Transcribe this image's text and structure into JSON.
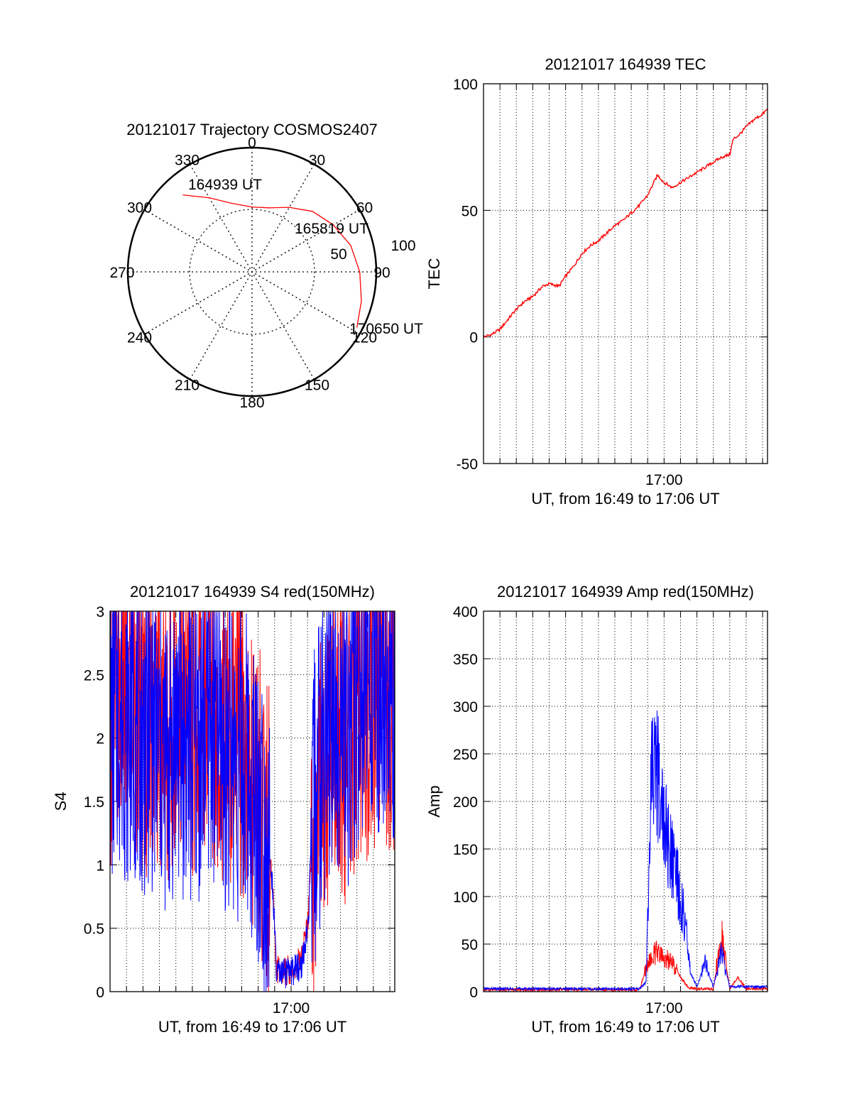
{
  "colors": {
    "red": "#ff0000",
    "blue": "#0000ff",
    "axis": "#000000",
    "grid": "#000000",
    "background": "#ffffff"
  },
  "chart_data": [
    {
      "type": "polar",
      "title": "20121017 Trajectory COSMOS2407",
      "azimuth_labels": [
        "0",
        "30",
        "60",
        "90",
        "120",
        "150",
        "180",
        "210",
        "240",
        "270",
        "300",
        "330"
      ],
      "radial_labels": [
        "50",
        "100"
      ],
      "grid": true,
      "series": [
        {
          "color": "#ff0000",
          "points": [
            {
              "az": 318,
              "el": 15
            },
            {
              "az": 330,
              "el": 28
            },
            {
              "az": 343,
              "el": 38
            },
            {
              "az": 0,
              "el": 43
            },
            {
              "az": 15,
              "el": 42
            },
            {
              "az": 30,
              "el": 36
            },
            {
              "az": 45,
              "el": 28
            },
            {
              "az": 60,
              "el": 22
            },
            {
              "az": 75,
              "el": 16
            },
            {
              "az": 90,
              "el": 12
            },
            {
              "az": 105,
              "el": 8
            },
            {
              "az": 118,
              "el": 4
            }
          ]
        }
      ],
      "annotations": [
        "164939 UT",
        "165819 UT",
        "170650 UT"
      ]
    },
    {
      "type": "line",
      "title": "20121017 164939 TEC",
      "xlabel": "UT, from 16:49 to 17:06 UT",
      "ylabel": "TEC",
      "xlim": [
        0,
        17.3
      ],
      "ylim": [
        -50,
        100
      ],
      "x_tick_label": "17:00",
      "x_tick_at": 11.0,
      "yticks": [
        -50,
        0,
        50,
        100
      ],
      "grid": true,
      "series": [
        {
          "color": "#ff0000",
          "x": [
            0.0,
            0.5,
            1.0,
            1.5,
            2.0,
            2.5,
            3.0,
            3.3,
            3.6,
            4.0,
            4.6,
            5.0,
            5.5,
            6.0,
            6.5,
            7.0,
            7.5,
            8.0,
            8.5,
            9.0,
            9.5,
            10.0,
            10.6,
            11.0,
            11.5,
            12.0,
            12.5,
            13.0,
            13.5,
            14.0,
            14.5,
            15.0,
            15.2,
            15.6,
            16.0,
            16.5,
            17.0,
            17.3
          ],
          "y": [
            0,
            1,
            3,
            7,
            11,
            14,
            16,
            18,
            20,
            21,
            20,
            24,
            28,
            33,
            36,
            38,
            41,
            44,
            46,
            49,
            52,
            56,
            64,
            61,
            59,
            61,
            63,
            65,
            67,
            69,
            71,
            72,
            78,
            80,
            83,
            86,
            88,
            90
          ]
        }
      ]
    },
    {
      "type": "line",
      "title": "20121017 164939 S4 red(150MHz)",
      "xlabel": "UT, from 16:49 to 17:06 UT",
      "ylabel": "S4",
      "xlim": [
        0,
        17.3
      ],
      "ylim": [
        0,
        3
      ],
      "x_tick_label": "17:00",
      "x_tick_at": 11.0,
      "yticks": [
        0,
        0.5,
        1,
        1.5,
        2,
        2.5,
        3
      ],
      "grid": true,
      "series": [
        {
          "color": "#ff0000",
          "x": [
            0.0,
            0.5,
            1.0,
            1.5,
            2.0,
            2.5,
            3.0,
            3.5,
            4.0,
            4.5,
            5.0,
            5.5,
            6.0,
            6.5,
            7.0,
            7.5,
            8.0,
            8.5,
            9.0,
            9.5,
            9.9,
            10.1,
            10.4,
            11.0,
            11.6,
            12.0,
            12.3,
            12.7,
            13.0,
            13.5,
            14.0,
            14.5,
            15.0,
            15.5,
            16.0,
            16.5,
            17.0,
            17.3
          ],
          "y": [
            2.2,
            2.5,
            2.3,
            2.4,
            2.1,
            2.3,
            2.2,
            2.0,
            2.4,
            2.2,
            2.1,
            2.3,
            2.4,
            2.2,
            2.0,
            2.1,
            2.0,
            1.8,
            1.6,
            1.3,
            0.8,
            0.2,
            0.15,
            0.18,
            0.25,
            0.5,
            1.2,
            1.6,
            1.8,
            2.0,
            2.1,
            1.8,
            2.2,
            2.3,
            2.4,
            2.5,
            2.3,
            2.4
          ]
        },
        {
          "color": "#0000ff",
          "x": [
            0.0,
            0.5,
            1.0,
            1.5,
            2.0,
            2.5,
            3.0,
            3.5,
            4.0,
            4.5,
            5.0,
            5.5,
            6.0,
            6.5,
            7.0,
            7.5,
            8.0,
            8.5,
            9.0,
            9.5,
            9.9,
            10.1,
            10.4,
            11.0,
            11.6,
            12.0,
            12.3,
            12.7,
            13.0,
            13.5,
            14.0,
            14.5,
            15.0,
            15.5,
            16.0,
            16.5,
            17.0,
            17.3
          ],
          "y": [
            2.0,
            2.3,
            2.1,
            2.2,
            2.0,
            2.1,
            1.9,
            1.8,
            2.1,
            2.0,
            1.9,
            2.0,
            2.2,
            2.0,
            1.9,
            1.9,
            1.8,
            1.7,
            1.5,
            1.2,
            0.8,
            0.15,
            0.13,
            0.16,
            0.2,
            0.45,
            1.3,
            1.7,
            2.0,
            2.2,
            2.3,
            2.1,
            2.4,
            2.5,
            2.6,
            2.5,
            2.4,
            2.5
          ]
        }
      ]
    },
    {
      "type": "line",
      "title": "20121017 164939 Amp red(150MHz)",
      "xlabel": "UT, from 16:49 to 17:06 UT",
      "ylabel": "Amp",
      "xlim": [
        0,
        17.3
      ],
      "ylim": [
        0,
        400
      ],
      "x_tick_label": "17:00",
      "x_tick_at": 11.0,
      "yticks": [
        0,
        50,
        100,
        150,
        200,
        250,
        300,
        350,
        400
      ],
      "grid": true,
      "series": [
        {
          "color": "#ff0000",
          "x": [
            0.0,
            2.0,
            4.0,
            6.0,
            8.0,
            9.5,
            10.0,
            10.5,
            11.0,
            11.5,
            12.0,
            12.5,
            13.0,
            14.0,
            14.5,
            15.0,
            15.5,
            16.0,
            17.3
          ],
          "y": [
            2,
            2,
            2,
            2,
            2,
            2,
            30,
            40,
            35,
            30,
            15,
            4,
            3,
            3,
            60,
            3,
            15,
            3,
            3
          ]
        },
        {
          "color": "#0000ff",
          "x": [
            0.0,
            2.0,
            4.0,
            6.0,
            8.0,
            9.5,
            9.9,
            10.2,
            10.5,
            10.8,
            11.1,
            11.4,
            11.7,
            12.0,
            12.3,
            12.6,
            13.0,
            13.5,
            14.0,
            14.5,
            15.0,
            15.5,
            16.0,
            16.5,
            17.3
          ],
          "y": [
            3,
            3,
            3,
            3,
            3,
            3,
            10,
            210,
            240,
            200,
            170,
            140,
            120,
            100,
            70,
            20,
            5,
            30,
            5,
            40,
            5,
            5,
            5,
            5,
            5
          ]
        }
      ]
    }
  ]
}
